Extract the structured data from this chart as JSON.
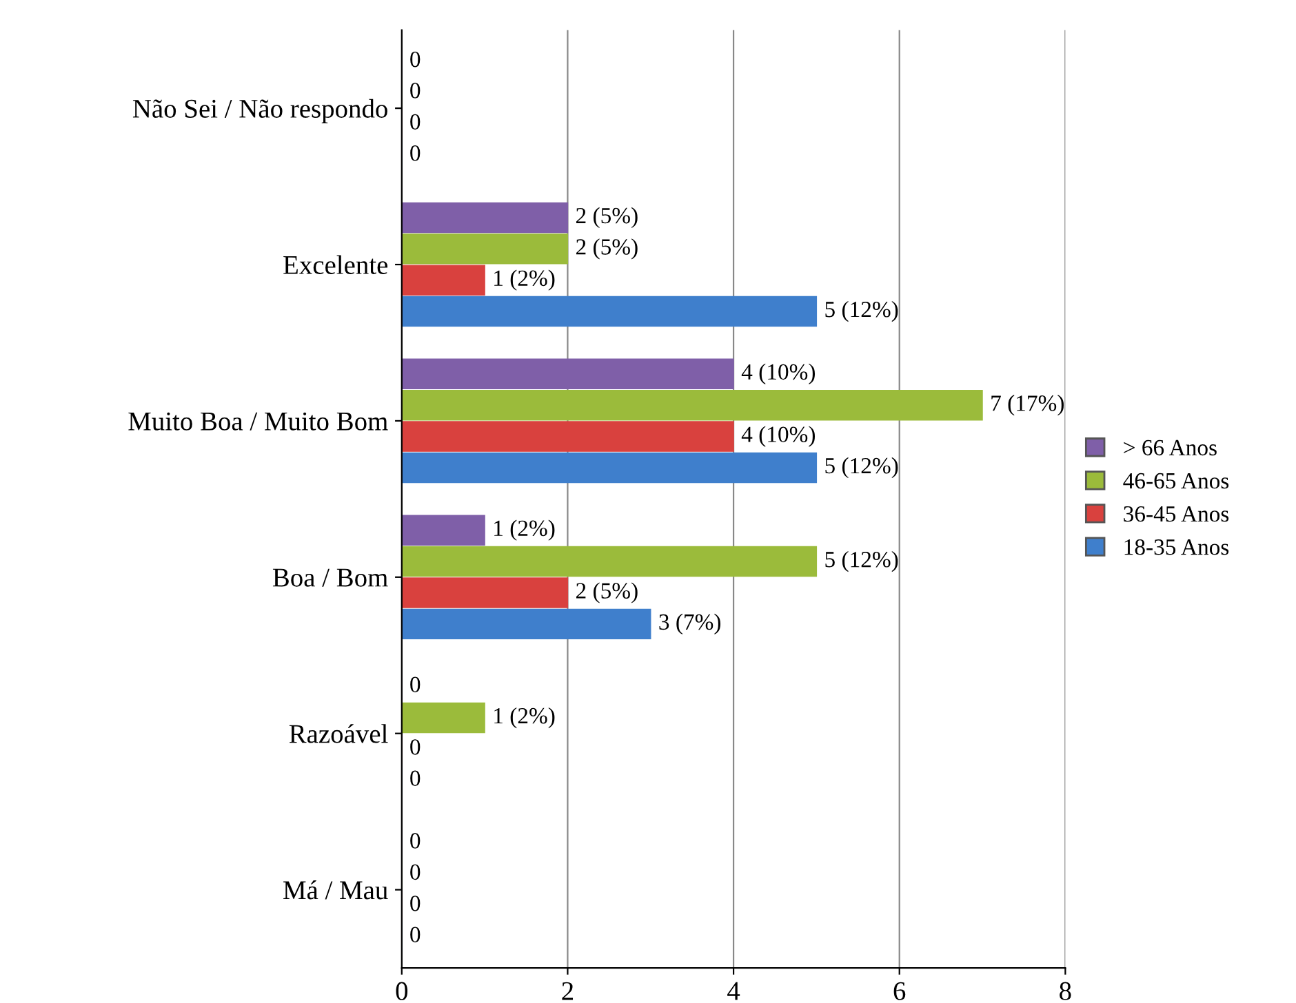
{
  "chart_data": {
    "type": "bar",
    "orientation": "horizontal",
    "categories": [
      "Não Sei / Não respondo",
      "Excelente",
      "Muito Boa / Muito Bom",
      "Boa / Bom",
      "Razoável",
      "Má / Mau"
    ],
    "series": [
      {
        "name": "> 66 Anos",
        "color": "#7f5fa8",
        "values": [
          0,
          2,
          4,
          1,
          0,
          0
        ],
        "value_labels": [
          "0",
          "2 (5%)",
          "4 (10%)",
          "1 (2%)",
          "0",
          "0"
        ]
      },
      {
        "name": "46-65 Anos",
        "color": "#9bbb3b",
        "values": [
          0,
          2,
          7,
          5,
          1,
          0
        ],
        "value_labels": [
          "0",
          "2 (5%)",
          "7 (17%)",
          "5 (12%)",
          "1 (2%)",
          "0"
        ]
      },
      {
        "name": "36-45 Anos",
        "color": "#d9413e",
        "values": [
          0,
          1,
          4,
          2,
          0,
          0
        ],
        "value_labels": [
          "0",
          "1 (2%)",
          "4 (10%)",
          "2 (5%)",
          "0",
          "0"
        ]
      },
      {
        "name": "18-35 Anos",
        "color": "#3f7fcc",
        "values": [
          0,
          5,
          5,
          3,
          0,
          0
        ],
        "value_labels": [
          "0",
          "5 (12%)",
          "5 (12%)",
          "3 (7%)",
          "0",
          "0"
        ]
      }
    ],
    "xlim": [
      0,
      8
    ],
    "xticks": [
      0,
      2,
      4,
      6,
      8
    ],
    "grid": "x",
    "legend": "right"
  }
}
